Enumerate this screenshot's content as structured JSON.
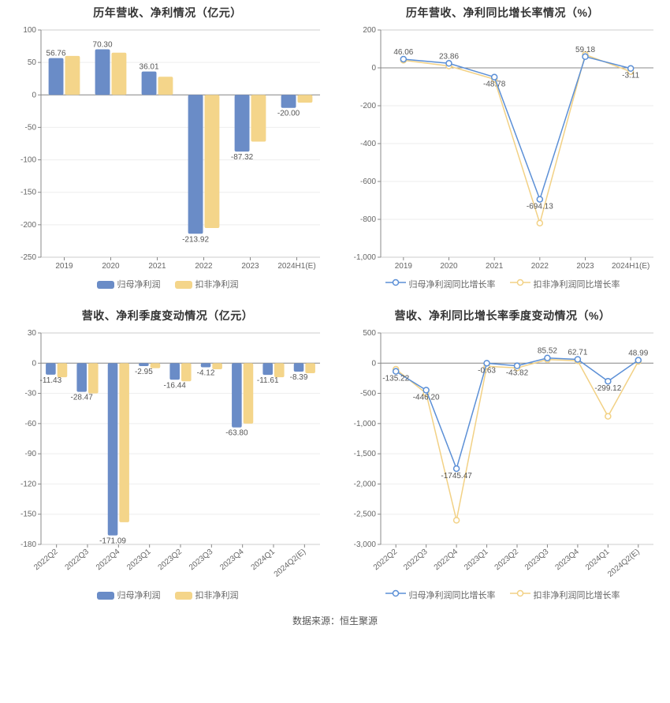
{
  "footer": {
    "prefix": "数据来源：",
    "source": "恒生聚源"
  },
  "palette": {
    "blue": "#6a8cc7",
    "yellow": "#f4d58a",
    "blue_line": "#5b8fd6",
    "yellow_line": "#f2d185",
    "grid": "#eeeeee",
    "split": "#cccccc",
    "axis": "#888888",
    "text": "#666666",
    "bg": "#ffffff"
  },
  "chart1": {
    "type": "bar",
    "title": "历年营收、净利情况（亿元）",
    "categories": [
      "2019",
      "2020",
      "2021",
      "2022",
      "2023",
      "2024H1(E)"
    ],
    "series": [
      {
        "name": "归母净利润",
        "color": "#6a8cc7",
        "values": [
          56.76,
          70.3,
          36.01,
          -213.92,
          -87.32,
          -20.0
        ],
        "show_label": [
          true,
          true,
          true,
          true,
          true,
          true
        ]
      },
      {
        "name": "扣非净利润",
        "color": "#f4d58a",
        "values": [
          60,
          65,
          28,
          -205,
          -72,
          -12
        ],
        "show_label": [
          false,
          false,
          false,
          false,
          false,
          false
        ]
      }
    ],
    "ylim": [
      -250,
      100
    ],
    "ytick_step": 50,
    "bar_width": 0.32,
    "label_fontsize": 10,
    "title_fontsize": 14,
    "grid_color": "#eeeeee",
    "background_color": "#ffffff",
    "x_rotate": false
  },
  "chart2": {
    "type": "line",
    "title": "历年营收、净利同比增长率情况（%）",
    "categories": [
      "2019",
      "2020",
      "2021",
      "2022",
      "2023",
      "2024H1(E)"
    ],
    "series": [
      {
        "name": "归母净利润同比增长率",
        "color": "#5b8fd6",
        "values": [
          46.06,
          23.86,
          -48.78,
          -694.13,
          59.18,
          -3.11
        ],
        "show_label": [
          true,
          true,
          true,
          true,
          true,
          true
        ]
      },
      {
        "name": "扣非净利润同比增长率",
        "color": "#f2d185",
        "values": [
          40,
          10,
          -60,
          -820,
          70,
          -20
        ],
        "show_label": [
          false,
          false,
          false,
          false,
          false,
          false
        ]
      }
    ],
    "ylim": [
      -1000,
      200
    ],
    "ytick_step": 200,
    "marker_radius": 3.5,
    "line_width": 1.5,
    "title_fontsize": 14,
    "label_fontsize": 10,
    "grid_color": "#eeeeee",
    "background_color": "#ffffff",
    "x_rotate": false
  },
  "chart3": {
    "type": "bar",
    "title": "营收、净利季度变动情况（亿元）",
    "categories": [
      "2022Q2",
      "2022Q3",
      "2022Q4",
      "2023Q1",
      "2023Q2",
      "2023Q3",
      "2023Q4",
      "2024Q1",
      "2024Q2(E)"
    ],
    "series": [
      {
        "name": "归母净利润",
        "color": "#6a8cc7",
        "values": [
          -11.43,
          -28.47,
          -171.09,
          -2.95,
          -16.44,
          -4.12,
          -63.8,
          -11.61,
          -8.39
        ],
        "show_label": [
          true,
          true,
          true,
          true,
          true,
          true,
          true,
          true,
          true
        ]
      },
      {
        "name": "扣非净利润",
        "color": "#f4d58a",
        "values": [
          -14,
          -30,
          -158,
          -5,
          -18,
          -6,
          -60,
          -14,
          -10
        ],
        "show_label": [
          false,
          false,
          false,
          false,
          false,
          false,
          false,
          false,
          false
        ]
      }
    ],
    "ylim": [
      -180,
      30
    ],
    "ytick_step": 30,
    "bar_width": 0.32,
    "label_fontsize": 10,
    "title_fontsize": 14,
    "grid_color": "#eeeeee",
    "background_color": "#ffffff",
    "x_rotate": true
  },
  "chart4": {
    "type": "line",
    "title": "营收、净利同比增长率季度变动情况（%）",
    "categories": [
      "2022Q2",
      "2022Q3",
      "2022Q4",
      "2023Q1",
      "2023Q2",
      "2023Q3",
      "2023Q4",
      "2024Q1",
      "2024Q2(E)"
    ],
    "series": [
      {
        "name": "归母净利润同比增长率",
        "color": "#5b8fd6",
        "values": [
          -135.22,
          -446.2,
          -1745.47,
          -0.63,
          -43.82,
          85.52,
          62.71,
          -299.12,
          48.99
        ],
        "show_label": [
          true,
          true,
          true,
          true,
          true,
          true,
          true,
          true,
          true
        ]
      },
      {
        "name": "扣非净利润同比增长率",
        "color": "#f2d185",
        "values": [
          -100,
          -500,
          -2600,
          -50,
          -80,
          60,
          40,
          -880,
          30
        ],
        "show_label": [
          false,
          false,
          false,
          false,
          false,
          false,
          false,
          false,
          false
        ]
      }
    ],
    "ylim": [
      -3000,
      500
    ],
    "ytick_step": 500,
    "marker_radius": 3.5,
    "line_width": 1.5,
    "title_fontsize": 14,
    "label_fontsize": 10,
    "grid_color": "#eeeeee",
    "background_color": "#ffffff",
    "x_rotate": true
  }
}
